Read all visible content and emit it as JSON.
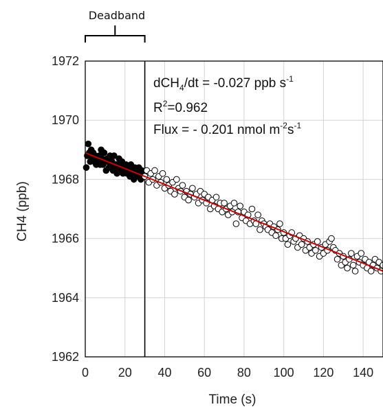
{
  "chart_data": {
    "type": "scatter",
    "xlabel": "Time (s)",
    "ylabel": "CH4 (ppb)",
    "xlim": [
      0,
      150
    ],
    "ylim": [
      1962,
      1972
    ],
    "xticks": [
      0,
      20,
      40,
      60,
      80,
      100,
      120,
      140
    ],
    "yticks": [
      1962,
      1964,
      1966,
      1968,
      1970,
      1972
    ],
    "grid": true,
    "deadband": {
      "label": "Deadband",
      "start": 0,
      "end": 30
    },
    "fit_line": {
      "color": "#cc0000",
      "x": [
        0,
        150
      ],
      "y": [
        1968.9,
        1964.9
      ]
    },
    "annotations": {
      "slope_prefix": "dCH",
      "slope_sub": "4",
      "slope_mid": "/dt = -0.027 ppb s",
      "slope_sup": "-1",
      "r2_prefix": "R",
      "r2_sup": "2",
      "r2_value": "=0.962",
      "flux_prefix": "Flux = - 0.201 nmol m",
      "flux_sup1": "-2",
      "flux_mid": "s",
      "flux_sup2": "-1"
    },
    "series": [
      {
        "style": "filled",
        "color": "#000000",
        "x": [
          0.5,
          1,
          1.5,
          2,
          2.5,
          3,
          3.5,
          4,
          4.5,
          5,
          5.5,
          6,
          6.5,
          7,
          7.5,
          8,
          8.5,
          9,
          9.5,
          10,
          10.5,
          11,
          11.5,
          12,
          12.5,
          13,
          13.5,
          14,
          14.5,
          15,
          15.5,
          16,
          16.5,
          17,
          17.5,
          18,
          18.5,
          19,
          19.5,
          20,
          20.5,
          21,
          21.5,
          22,
          22.5,
          23,
          23.5,
          24,
          24.5,
          25,
          25.5,
          26,
          26.5,
          27,
          27.5,
          28,
          28.5,
          29,
          29.5
        ],
        "y": [
          1968.4,
          1968.8,
          1969.2,
          1968.9,
          1968.6,
          1969.0,
          1968.7,
          1968.9,
          1968.6,
          1968.8,
          1968.5,
          1968.7,
          1968.6,
          1968.8,
          1968.5,
          1969.0,
          1968.7,
          1968.5,
          1968.9,
          1968.6,
          1968.3,
          1968.7,
          1968.6,
          1968.4,
          1968.8,
          1968.5,
          1968.6,
          1968.3,
          1968.8,
          1968.4,
          1968.5,
          1968.2,
          1968.5,
          1968.7,
          1968.3,
          1968.4,
          1968.6,
          1968.2,
          1968.4,
          1968.3,
          1968.5,
          1968.2,
          1968.4,
          1968.3,
          1968.1,
          1968.5,
          1968.2,
          1968.3,
          1968.0,
          1968.4,
          1968.2,
          1968.3,
          1968.1,
          1968.4,
          1968.2,
          1968.0,
          1968.3,
          1968.1,
          1968.2
        ]
      },
      {
        "style": "open",
        "color": "#000000",
        "x": [
          30,
          31,
          32,
          33,
          34,
          35,
          36,
          37,
          38,
          39,
          40,
          41,
          42,
          43,
          44,
          45,
          46,
          47,
          48,
          49,
          50,
          51,
          52,
          53,
          54,
          55,
          56,
          57,
          58,
          59,
          60,
          61,
          62,
          63,
          64,
          65,
          66,
          67,
          68,
          69,
          70,
          71,
          72,
          73,
          74,
          75,
          76,
          77,
          78,
          79,
          80,
          81,
          82,
          83,
          84,
          85,
          86,
          87,
          88,
          89,
          90,
          91,
          92,
          93,
          94,
          95,
          96,
          97,
          98,
          99,
          100,
          101,
          102,
          103,
          104,
          105,
          106,
          107,
          108,
          109,
          110,
          111,
          112,
          113,
          114,
          115,
          116,
          117,
          118,
          119,
          120,
          121,
          122,
          123,
          124,
          125,
          126,
          127,
          128,
          129,
          130,
          131,
          132,
          133,
          134,
          135,
          136,
          137,
          138,
          139,
          140,
          141,
          142,
          143,
          144,
          145,
          146,
          147,
          148,
          149,
          150
        ],
        "y": [
          1968.1,
          1968.3,
          1967.9,
          1968.2,
          1968.0,
          1968.3,
          1967.8,
          1968.1,
          1967.9,
          1968.2,
          1967.7,
          1968.0,
          1967.8,
          1967.6,
          1967.9,
          1967.5,
          1968.0,
          1967.7,
          1967.6,
          1967.8,
          1967.4,
          1967.6,
          1967.3,
          1967.5,
          1967.7,
          1967.4,
          1967.5,
          1967.2,
          1967.6,
          1967.3,
          1967.5,
          1967.2,
          1967.4,
          1967.0,
          1967.3,
          1967.1,
          1967.4,
          1967.0,
          1967.2,
          1966.9,
          1967.2,
          1967.0,
          1966.8,
          1967.1,
          1966.9,
          1967.2,
          1966.5,
          1966.9,
          1967.1,
          1966.7,
          1966.9,
          1966.6,
          1966.8,
          1966.5,
          1967.0,
          1966.6,
          1966.5,
          1966.8,
          1966.3,
          1966.6,
          1966.5,
          1966.4,
          1966.3,
          1966.5,
          1966.2,
          1966.4,
          1966.1,
          1966.3,
          1966.5,
          1966.0,
          1966.2,
          1966.0,
          1965.8,
          1966.1,
          1966.2,
          1965.9,
          1966.0,
          1965.7,
          1966.1,
          1965.8,
          1966.0,
          1965.6,
          1965.9,
          1965.7,
          1965.5,
          1965.8,
          1965.6,
          1965.9,
          1965.4,
          1965.7,
          1965.5,
          1965.8,
          1965.6,
          1965.9,
          1966.0,
          1965.7,
          1965.6,
          1965.3,
          1965.5,
          1965.1,
          1965.4,
          1965.2,
          1965.0,
          1965.3,
          1965.5,
          1965.1,
          1964.9,
          1965.4,
          1965.2,
          1965.5,
          1965.1,
          1965.3,
          1965.0,
          1965.2,
          1964.9,
          1965.1,
          1965.3,
          1965.0,
          1965.2,
          1964.9,
          1965.1
        ]
      }
    ]
  }
}
